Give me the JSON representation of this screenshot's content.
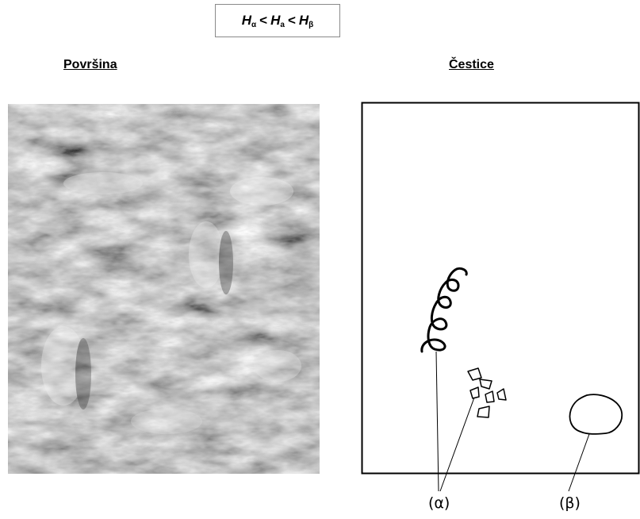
{
  "formula": {
    "h1": "H",
    "s1": "α",
    "lt1": "<",
    "h2": "H",
    "s2": "a",
    "lt2": "<",
    "h3": "H",
    "s3": "β"
  },
  "headings": {
    "surface": "Površina",
    "particles": "Čestice"
  },
  "labels": {
    "alpha": "(α)",
    "beta": "(β)"
  }
}
